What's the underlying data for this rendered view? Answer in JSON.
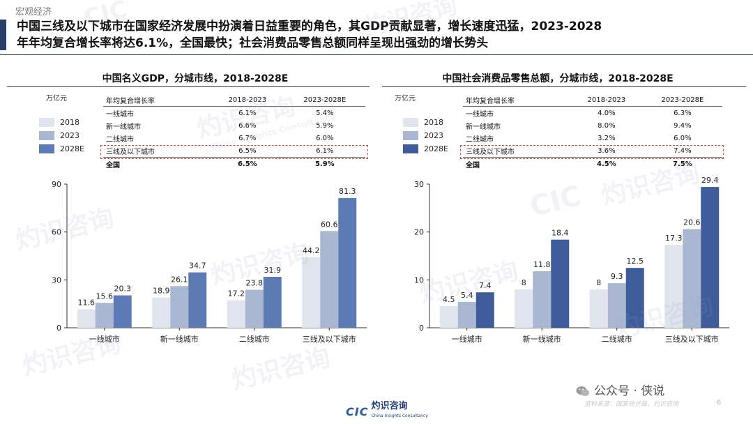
{
  "section_tag": "宏观经济",
  "headline": {
    "line1": "中国三线及以下城市在国家经济发展中扮演着日益重要的角色，其GDP贡献显著，增长速度迅猛，2023-2028",
    "line2": "年年均复合增长率将达6.1%，全国最快；社会消费品零售总额同样呈现出强劲的增长势头"
  },
  "left_panel": {
    "title": "中国名义GDP，分城市线，2018-2028E",
    "unit": "万亿元",
    "cagr_table": {
      "header": [
        "年均复合增长率",
        "2018-2023",
        "2023-2028E"
      ],
      "rows": [
        [
          "一线城市",
          "6.1%",
          "5.4%"
        ],
        [
          "新一线城市",
          "6.6%",
          "5.9%"
        ],
        [
          "二线城市",
          "6.7%",
          "6.0%"
        ],
        [
          "三线及以下城市",
          "6.5%",
          "6.1%"
        ]
      ],
      "total": [
        "全国",
        "6.5%",
        "5.9%"
      ]
    }
  },
  "right_panel": {
    "title": "中国社会消费品零售总额，分城市线，2018-2028E",
    "unit": "万亿元",
    "cagr_table": {
      "header": [
        "年均复合增长率",
        "2018-2023",
        "2023-2028E"
      ],
      "rows": [
        [
          "一线城市",
          "4.0%",
          "6.3%"
        ],
        [
          "新一线城市",
          "8.0%",
          "9.4%"
        ],
        [
          "二线城市",
          "3.2%",
          "6.0%"
        ],
        [
          "三线及以下城市",
          "3.6%",
          "7.4%"
        ]
      ],
      "total": [
        "全国",
        "4.5%",
        "7.5%"
      ]
    }
  },
  "colors": {
    "left": [
      "#dfe4ef",
      "#a9b7d3",
      "#5c7bb5"
    ],
    "right": [
      "#dfe4ef",
      "#a9b7d3",
      "#3e5c9a"
    ],
    "highlight": "#d94040"
  },
  "chart_data": [
    {
      "type": "bar",
      "title": "中国名义GDP，分城市线，2018-2028E",
      "ylabel": "万亿元",
      "categories": [
        "一线城市",
        "新一线城市",
        "二线城市",
        "三线及以下城市"
      ],
      "series": [
        {
          "name": "2018",
          "values": [
            11.6,
            18.9,
            17.2,
            44.2
          ]
        },
        {
          "name": "2023",
          "values": [
            15.6,
            26.1,
            23.8,
            60.6
          ]
        },
        {
          "name": "2028E",
          "values": [
            20.3,
            34.7,
            31.9,
            81.3
          ]
        }
      ],
      "ylim": [
        0,
        90
      ],
      "yticks": [
        0,
        30,
        60,
        90
      ],
      "grid": false,
      "legend": "top-left"
    },
    {
      "type": "bar",
      "title": "中国社会消费品零售总额，分城市线，2018-2028E",
      "ylabel": "万亿元",
      "categories": [
        "一线城市",
        "新一线城市",
        "二线城市",
        "三线及以下城市"
      ],
      "series": [
        {
          "name": "2018",
          "values": [
            4.5,
            8.0,
            8.0,
            17.3
          ]
        },
        {
          "name": "2023",
          "values": [
            5.4,
            11.8,
            9.3,
            20.6
          ]
        },
        {
          "name": "2028E",
          "values": [
            7.4,
            18.4,
            12.5,
            29.4
          ]
        }
      ],
      "ylim": [
        0,
        30
      ],
      "yticks": [
        0,
        10,
        20,
        30
      ],
      "grid": false,
      "legend": "top-left"
    }
  ],
  "footer": {
    "logo_mark": "CIC",
    "logo_cn": "灼识咨询",
    "logo_en": "China Insights Consultancy",
    "wechat": "公众号 · 侠说",
    "source_note": "资料来源：国家统计局，灼识咨询",
    "page_number": "6"
  },
  "watermark": {
    "cn": "灼识咨询",
    "en": "China Insights Consultancy",
    "mark": "CIC"
  }
}
